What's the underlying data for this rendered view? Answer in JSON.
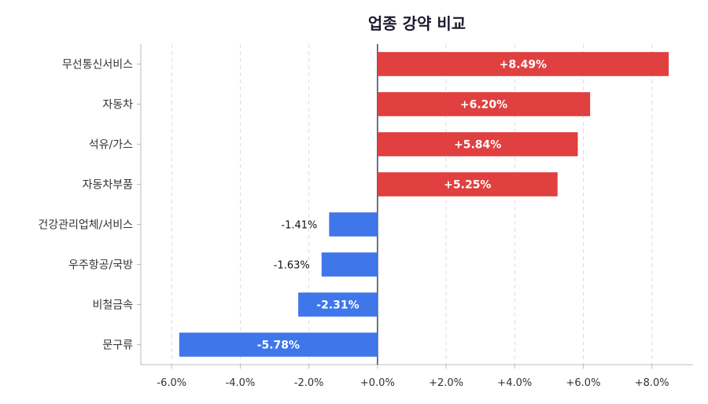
{
  "chart_data": {
    "type": "bar",
    "orientation": "horizontal",
    "title": "업종 강약 비교",
    "xlabel": "",
    "ylabel": "",
    "xlim": [
      -6.9,
      9.2
    ],
    "x_ticks": [
      -6,
      -4,
      -2,
      0,
      2,
      4,
      6,
      8
    ],
    "x_tick_labels": [
      "-6.0%",
      "-4.0%",
      "-2.0%",
      "+0.0%",
      "+2.0%",
      "+4.0%",
      "+6.0%",
      "+8.0%"
    ],
    "grid": "vertical-dashed",
    "categories": [
      "무선통신서비스",
      "자동차",
      "석유/가스",
      "자동차부품",
      "건강관리업체/서비스",
      "우주항공/국방",
      "비철금속",
      "문구류"
    ],
    "values": [
      8.49,
      6.2,
      5.84,
      5.25,
      -1.41,
      -1.63,
      -2.31,
      -5.78
    ],
    "value_labels": [
      "+8.49%",
      "+6.20%",
      "+5.84%",
      "+5.25%",
      "-1.41%",
      "-1.63%",
      "-2.31%",
      "-5.78%"
    ],
    "colors": {
      "positive": "#e04040",
      "negative": "#3f76ea",
      "zero_line": "#34495e",
      "grid": "#dddddd",
      "axis": "#bbbbbb"
    }
  }
}
